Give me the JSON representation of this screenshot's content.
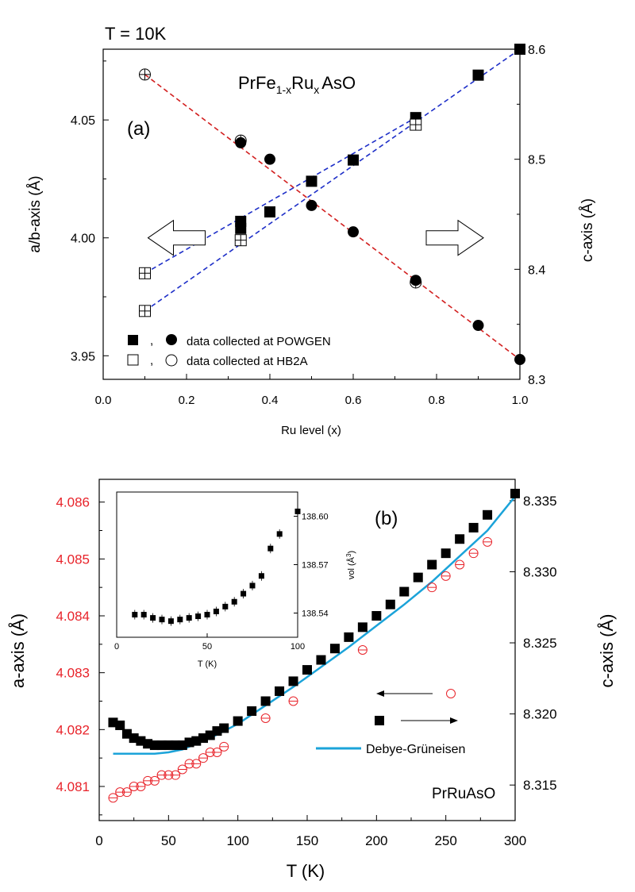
{
  "chart_data": [
    {
      "id": "a",
      "type": "scatter",
      "panel_label": "(a)",
      "header": "T = 10K",
      "title_parts": [
        "PrFe",
        "1-x",
        "Ru",
        "x",
        "AsO"
      ],
      "xlabel": "Ru level (x)",
      "ylabel_left": "a/b-axis (Å)",
      "ylabel_right": "c-axis (Å)",
      "xlim": [
        0.0,
        1.0
      ],
      "ylim_left": [
        3.94,
        4.08
      ],
      "ylim_right": [
        8.3,
        8.6
      ],
      "xticks": [
        "0.0",
        "0.2",
        "0.4",
        "0.6",
        "0.8",
        "1.0"
      ],
      "yticks_left": [
        "3.95",
        "4.00",
        "4.05"
      ],
      "yticks_right": [
        "8.3",
        "8.4",
        "8.5",
        "8.6"
      ],
      "series": [
        {
          "name": "a/b-axis POWGEN",
          "marker": "filled-square",
          "axis": "left",
          "x": [
            0.33,
            0.33,
            0.4,
            0.5,
            0.6,
            0.75,
            0.9,
            1.0
          ],
          "values": [
            4.007,
            4.004,
            4.011,
            4.024,
            4.033,
            4.051,
            4.069,
            4.08
          ]
        },
        {
          "name": "a/b-axis HB2A",
          "marker": "open-square",
          "axis": "left",
          "x": [
            0.1,
            0.1,
            0.33,
            0.75
          ],
          "values": [
            3.985,
            3.969,
            3.999,
            4.048
          ]
        },
        {
          "name": "c-axis POWGEN",
          "marker": "filled-circle",
          "axis": "right",
          "x": [
            0.33,
            0.4,
            0.5,
            0.6,
            0.75,
            0.9,
            1.0
          ],
          "values": [
            8.515,
            8.5,
            8.458,
            8.434,
            8.39,
            8.349,
            8.318
          ]
        },
        {
          "name": "c-axis HB2A",
          "marker": "open-circle",
          "axis": "right",
          "x": [
            0.1,
            0.33,
            0.75
          ],
          "values": [
            8.577,
            8.517,
            8.388
          ]
        }
      ],
      "fit_lines": [
        {
          "color": "#d21f1f",
          "axis": "right",
          "x": [
            0.1,
            1.0
          ],
          "values": [
            8.577,
            8.318
          ]
        },
        {
          "color": "#1e2fc8",
          "axis": "left",
          "x": [
            0.1,
            1.0
          ],
          "values": [
            3.969,
            4.08
          ]
        },
        {
          "color": "#1e2fc8",
          "axis": "left",
          "x": [
            0.1,
            0.75
          ],
          "values": [
            3.985,
            4.051
          ]
        }
      ],
      "legend": [
        {
          "symbols": "■ , ●",
          "label": "data collected at POWGEN"
        },
        {
          "symbols": "□ , ○",
          "label": "data collected at HB2A"
        }
      ],
      "axis_arrows": [
        {
          "direction": "left",
          "x": 0.18,
          "value": 4.0,
          "axis": "left"
        },
        {
          "direction": "right",
          "x": 0.84,
          "value": 4.0,
          "axis": "left"
        }
      ]
    },
    {
      "id": "b",
      "type": "scatter",
      "panel_label": "(b)",
      "compound": "PrRuAsO",
      "xlabel": "T (K)",
      "ylabel_left": "a-axis (Å)",
      "ylabel_right": "c-axis (Å)",
      "xlim": [
        0,
        300
      ],
      "ylim_left": [
        4.0804,
        4.0864
      ],
      "ylim_right": [
        8.3125,
        8.3365
      ],
      "xticks": [
        "0",
        "50",
        "100",
        "150",
        "200",
        "250",
        "300"
      ],
      "yticks_left": [
        "4.081",
        "4.082",
        "4.083",
        "4.084",
        "4.085",
        "4.086"
      ],
      "yticks_right": [
        "8.315",
        "8.320",
        "8.325",
        "8.330",
        "8.335"
      ],
      "left_tick_color": "#e8232a",
      "legend": [
        {
          "marker": "open-circle-red",
          "arrow": "left"
        },
        {
          "marker": "filled-square",
          "arrow": "right"
        },
        {
          "marker": "line-cyan",
          "label": "Debye-Grüneisen"
        }
      ],
      "series": [
        {
          "name": "c-axis",
          "marker": "filled-square",
          "axis": "right",
          "x": [
            10,
            15,
            20,
            25,
            30,
            35,
            40,
            45,
            50,
            55,
            60,
            65,
            70,
            75,
            80,
            85,
            90,
            100,
            110,
            120,
            130,
            140,
            150,
            160,
            170,
            180,
            190,
            200,
            210,
            220,
            230,
            240,
            250,
            260,
            270,
            280,
            300
          ],
          "values": [
            8.3194,
            8.3192,
            8.3186,
            8.3183,
            8.3181,
            8.3179,
            8.3178,
            8.3178,
            8.3178,
            8.3178,
            8.3178,
            8.318,
            8.3181,
            8.3183,
            8.3185,
            8.3188,
            8.319,
            8.3195,
            8.3202,
            8.3209,
            8.3216,
            8.3223,
            8.3231,
            8.3238,
            8.3246,
            8.3254,
            8.3261,
            8.3269,
            8.3277,
            8.3286,
            8.3296,
            8.3305,
            8.3313,
            8.3323,
            8.3331,
            8.334,
            8.3355
          ]
        },
        {
          "name": "a-axis",
          "marker": "open-circle-red",
          "axis": "left",
          "x": [
            10,
            15,
            20,
            25,
            30,
            35,
            40,
            45,
            50,
            55,
            60,
            65,
            70,
            75,
            80,
            85,
            90,
            120,
            140,
            190,
            240,
            250,
            260,
            270,
            280
          ],
          "values": [
            4.0808,
            4.0809,
            4.0809,
            4.081,
            4.081,
            4.0811,
            4.0811,
            4.0812,
            4.0812,
            4.0812,
            4.0813,
            4.0814,
            4.0814,
            4.0815,
            4.0816,
            4.0816,
            4.0817,
            4.0822,
            4.0825,
            4.0834,
            4.0845,
            4.0847,
            4.0849,
            4.0851,
            4.0853
          ]
        }
      ],
      "fit": {
        "name": "Debye-Grüneisen",
        "color": "#1ba3d9",
        "axis": "right",
        "x": [
          10,
          20,
          30,
          40,
          50,
          60,
          70,
          80,
          90,
          100,
          120,
          140,
          160,
          180,
          200,
          220,
          240,
          260,
          280,
          300
        ],
        "values": [
          8.3172,
          8.3172,
          8.3172,
          8.3172,
          8.3173,
          8.3175,
          8.3179,
          8.3183,
          8.3188,
          8.3193,
          8.3206,
          8.3219,
          8.3233,
          8.3247,
          8.3262,
          8.3277,
          8.3293,
          8.3311,
          8.3329,
          8.3353
        ]
      },
      "inset": {
        "type": "scatter",
        "xlabel": "T (K)",
        "ylabel": "vol (Å3)",
        "ylabel_parts": [
          "vol (Å",
          "3",
          ")"
        ],
        "xlim": [
          0,
          100
        ],
        "ylim": [
          138.525,
          138.615
        ],
        "xticks": [
          "0",
          "50",
          "100"
        ],
        "yticks": [
          "138.54",
          "138.57",
          "138.60"
        ],
        "x": [
          10,
          15,
          20,
          25,
          30,
          35,
          40,
          45,
          50,
          55,
          60,
          65,
          70,
          75,
          80,
          85,
          90,
          100
        ],
        "values": [
          138.539,
          138.539,
          138.537,
          138.536,
          138.535,
          138.536,
          138.537,
          138.538,
          138.539,
          138.541,
          138.544,
          138.547,
          138.552,
          138.557,
          138.563,
          138.58,
          138.589,
          138.603
        ]
      }
    }
  ]
}
